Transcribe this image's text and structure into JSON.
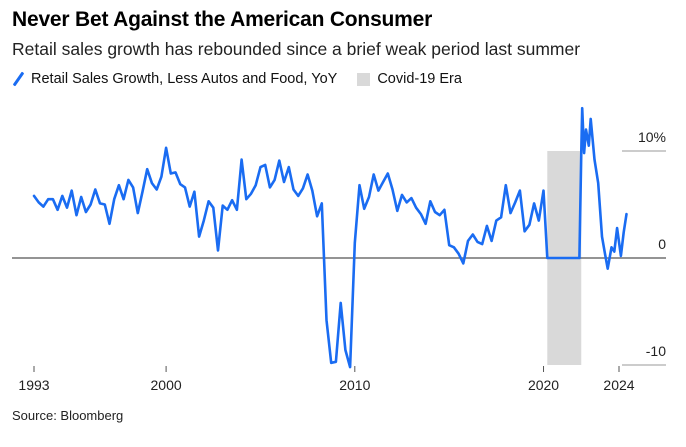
{
  "header": {
    "title": "Never Bet Against the American Consumer",
    "subtitle": "Retail sales growth has rebounded since a brief weak period last summer"
  },
  "footer": {
    "source": "Source: Bloomberg"
  },
  "colors": {
    "line": "#1a6cf2",
    "shade": "#d9d9d9",
    "grid": "#999999",
    "zero": "#555555"
  },
  "chart_data": {
    "type": "line",
    "title": "Never Bet Against the American Consumer",
    "subtitle": "Retail sales growth has rebounded since a brief weak period last summer",
    "xlabel": "",
    "ylabel": "",
    "xlim": [
      1993,
      2024.7
    ],
    "ylim": [
      -10,
      10
    ],
    "x_ticks": [
      {
        "value": 1993,
        "label": "1993"
      },
      {
        "value": 2000,
        "label": "2000"
      },
      {
        "value": 2010,
        "label": "2010"
      },
      {
        "value": 2020,
        "label": "2020"
      },
      {
        "value": 2024,
        "label": "2024"
      }
    ],
    "y_ticks": [
      {
        "value": 10,
        "label": "10%"
      },
      {
        "value": 0,
        "label": "0"
      },
      {
        "value": -10,
        "label": "-10"
      }
    ],
    "grid": false,
    "legend": {
      "placement": "top-left"
    },
    "shaded_regions": [
      {
        "name": "Covid-19 Era",
        "x_start": 2020.2,
        "x_end": 2022.0,
        "y_start": -10,
        "y_end": 10
      }
    ],
    "series": [
      {
        "name": "Retail Sales Growth, Less Autos and Food, YoY",
        "x": [
          1993.0,
          1993.25,
          1993.5,
          1993.75,
          1994.0,
          1994.25,
          1994.5,
          1994.75,
          1995.0,
          1995.25,
          1995.5,
          1995.75,
          1996.0,
          1996.25,
          1996.5,
          1996.75,
          1997.0,
          1997.25,
          1997.5,
          1997.75,
          1998.0,
          1998.25,
          1998.5,
          1998.75,
          1999.0,
          1999.25,
          1999.5,
          1999.75,
          2000.0,
          2000.25,
          2000.5,
          2000.75,
          2001.0,
          2001.25,
          2001.5,
          2001.75,
          2002.0,
          2002.25,
          2002.5,
          2002.75,
          2003.0,
          2003.25,
          2003.5,
          2003.75,
          2004.0,
          2004.25,
          2004.5,
          2004.75,
          2005.0,
          2005.25,
          2005.5,
          2005.75,
          2006.0,
          2006.25,
          2006.5,
          2006.75,
          2007.0,
          2007.25,
          2007.5,
          2007.75,
          2008.0,
          2008.25,
          2008.5,
          2008.75,
          2009.0,
          2009.25,
          2009.5,
          2009.75,
          2010.0,
          2010.25,
          2010.5,
          2010.75,
          2011.0,
          2011.25,
          2011.5,
          2011.75,
          2012.0,
          2012.25,
          2012.5,
          2012.75,
          2013.0,
          2013.25,
          2013.5,
          2013.75,
          2014.0,
          2014.25,
          2014.5,
          2014.75,
          2015.0,
          2015.25,
          2015.5,
          2015.75,
          2016.0,
          2016.25,
          2016.5,
          2016.75,
          2017.0,
          2017.25,
          2017.5,
          2017.75,
          2018.0,
          2018.25,
          2018.5,
          2018.75,
          2019.0,
          2019.25,
          2019.5,
          2019.75,
          2020.0,
          2020.2,
          2020.3,
          2020.45,
          2020.6,
          2021.0,
          2021.5,
          2021.9,
          2022.0,
          2022.05,
          2022.15,
          2022.25,
          2022.4,
          2022.5,
          2022.7,
          2022.9,
          2023.1,
          2023.25,
          2023.4,
          2023.6,
          2023.75,
          2023.9,
          2024.1,
          2024.25,
          2024.4
        ],
        "values": [
          5.8,
          5.2,
          4.8,
          5.5,
          5.5,
          4.5,
          5.8,
          4.7,
          6.3,
          4.0,
          5.7,
          4.3,
          5.0,
          6.4,
          5.1,
          5.0,
          3.2,
          5.5,
          6.8,
          5.5,
          7.3,
          6.6,
          4.2,
          6.2,
          8.3,
          7.0,
          6.4,
          7.6,
          10.3,
          7.9,
          8.0,
          6.9,
          6.6,
          4.8,
          6.2,
          2.0,
          3.5,
          5.3,
          4.7,
          0.7,
          4.9,
          4.5,
          5.4,
          4.5,
          9.2,
          5.5,
          6.0,
          6.8,
          8.5,
          8.7,
          6.6,
          7.3,
          9.1,
          7.1,
          8.5,
          6.4,
          5.8,
          6.5,
          7.8,
          6.3,
          3.9,
          5.1,
          -5.8,
          -9.8,
          -9.7,
          -4.2,
          -8.6,
          -10.2,
          1.4,
          6.8,
          4.6,
          5.7,
          7.8,
          6.3,
          7.1,
          7.9,
          6.4,
          4.4,
          5.9,
          5.2,
          5.6,
          4.7,
          4.1,
          3.2,
          5.3,
          4.3,
          4.0,
          4.5,
          1.2,
          1.0,
          0.4,
          -0.5,
          1.6,
          2.2,
          1.5,
          1.3,
          3.0,
          1.6,
          3.5,
          3.8,
          6.8,
          4.2,
          5.2,
          6.3,
          2.5,
          3.1,
          5.1,
          3.5,
          6.3,
          0.0,
          0.0,
          0.0,
          0.0,
          0.0,
          0.0,
          0.0,
          10.0,
          14.0,
          9.8,
          12.0,
          10.5,
          13.0,
          9.2,
          7.0,
          2.0,
          0.5,
          -1.0,
          1.0,
          0.6,
          2.8,
          0.2,
          2.4,
          4.1
        ]
      }
    ]
  }
}
